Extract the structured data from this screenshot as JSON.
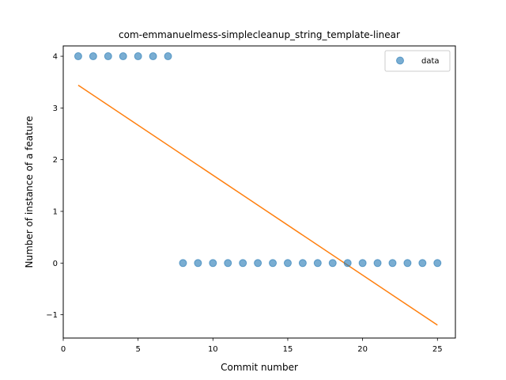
{
  "chart_data": {
    "type": "scatter",
    "title": "com-emmanuelmess-simplecleanup_string_template-linear",
    "xlabel": "Commit number",
    "ylabel": "Number of instance of a feature",
    "xlim": [
      0,
      26.2
    ],
    "ylim": [
      -1.45,
      4.2
    ],
    "x_ticks": [
      0,
      5,
      10,
      15,
      20,
      25
    ],
    "y_ticks": [
      -1,
      0,
      1,
      2,
      3,
      4
    ],
    "x_tick_labels": [
      "0",
      "5",
      "10",
      "15",
      "20",
      "25"
    ],
    "y_tick_labels": [
      "−1",
      "0",
      "1",
      "2",
      "3",
      "4"
    ],
    "grid": false,
    "legend_position": "top-right",
    "series": [
      {
        "name": "data",
        "kind": "scatter",
        "color": "#1f77b4",
        "x": [
          1,
          2,
          3,
          4,
          5,
          6,
          7,
          8,
          9,
          10,
          11,
          12,
          13,
          14,
          15,
          16,
          17,
          18,
          19,
          20,
          21,
          22,
          23,
          24,
          25
        ],
        "y": [
          4,
          4,
          4,
          4,
          4,
          4,
          4,
          0,
          0,
          0,
          0,
          0,
          0,
          0,
          0,
          0,
          0,
          0,
          0,
          0,
          0,
          0,
          0,
          0,
          0
        ]
      },
      {
        "kind": "line",
        "color": "#ff7f0e",
        "x": [
          1,
          25
        ],
        "y": [
          3.44,
          -1.2
        ]
      }
    ]
  }
}
